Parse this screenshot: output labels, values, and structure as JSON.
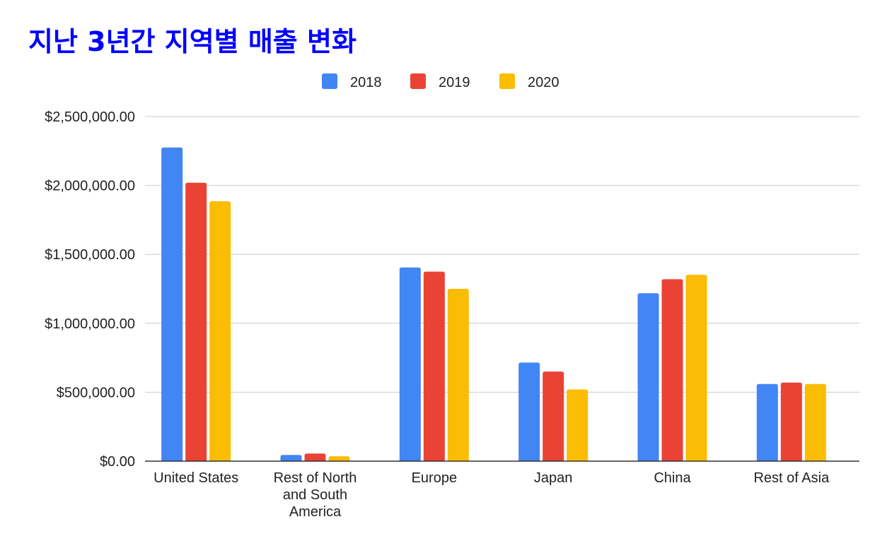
{
  "chart_data": {
    "type": "bar",
    "title": "지난 3년간 지역별 매출 변화",
    "xlabel": "",
    "ylabel": "",
    "categories": [
      [
        "United States"
      ],
      [
        "Rest of North",
        "and South",
        "America"
      ],
      [
        "Europe"
      ],
      [
        "Japan"
      ],
      [
        "China"
      ],
      [
        "Rest of Asia"
      ]
    ],
    "series": [
      {
        "name": "2018",
        "color": "#4285f4",
        "values": [
          2275000,
          45000,
          1405000,
          715000,
          1218000,
          560000
        ]
      },
      {
        "name": "2019",
        "color": "#ea4335",
        "values": [
          2020000,
          55000,
          1375000,
          650000,
          1320000,
          570000
        ]
      },
      {
        "name": "2020",
        "color": "#fbbc04",
        "values": [
          1885000,
          35000,
          1250000,
          520000,
          1352000,
          560000
        ]
      }
    ],
    "ylim": [
      0,
      2500000
    ],
    "yticks": [
      {
        "value": 0,
        "label": "$0.00"
      },
      {
        "value": 500000,
        "label": "$500,000.00"
      },
      {
        "value": 1000000,
        "label": "$1,000,000.00"
      },
      {
        "value": 1500000,
        "label": "$1,500,000.00"
      },
      {
        "value": 2000000,
        "label": "$2,000,000.00"
      },
      {
        "value": 2500000,
        "label": "$2,500,000.00"
      }
    ],
    "grid": true,
    "legend_position": "top-center"
  }
}
